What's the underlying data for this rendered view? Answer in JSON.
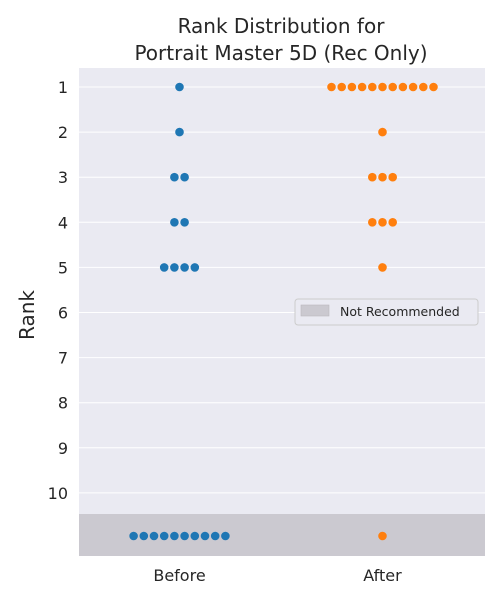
{
  "chart_data": {
    "type": "scatter",
    "title_lines": [
      "Rank Distribution for",
      "Portrait Master 5D (Rec Only)"
    ],
    "xlabel": "",
    "ylabel": "Rank",
    "categories": [
      "Before",
      "After"
    ],
    "rank_ticks": [
      "1",
      "2",
      "3",
      "4",
      "5",
      "6",
      "7",
      "8",
      "9",
      "10"
    ],
    "not_recommended_band": {
      "label": "Not Recommended",
      "color": "#cbc9d0"
    },
    "legend": {
      "label": "Not Recommended",
      "placement": "right-middle"
    },
    "grid": true,
    "background": "#eaeaf2",
    "series": [
      {
        "category": "Before",
        "color": "#1f77b4",
        "counts": {
          "1": 1,
          "2": 1,
          "3": 2,
          "4": 2,
          "5": 4,
          "not_recommended": 10
        }
      },
      {
        "category": "After",
        "color": "#ff7f0e",
        "counts": {
          "1": 11,
          "2": 1,
          "3": 3,
          "4": 3,
          "5": 1,
          "not_recommended": 1
        }
      }
    ]
  }
}
